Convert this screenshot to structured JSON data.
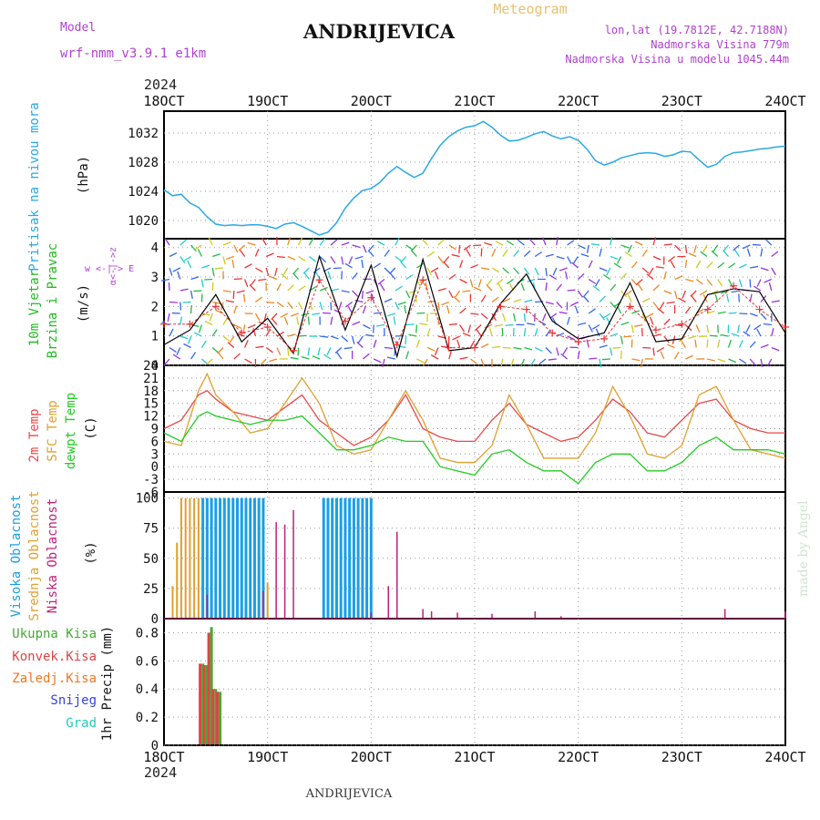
{
  "header": {
    "model_label": "Model",
    "model_name": "wrf-nmm_v3.9.1 e1km",
    "station": "ANDRIJEVICA",
    "meteogram": "Meteogram",
    "lonlat": "lon,lat (19.7812E, 42.7188N)",
    "elevation": "Nadmorska Visina 779m",
    "model_elevation": "Nadmorska Visina u modelu 1045.44m",
    "year": "2024",
    "footer_station": "ANDRIJEVICA",
    "watermark": "made by Angel"
  },
  "x_axis": {
    "ticks": [
      "18OCT",
      "19OCT",
      "20OCT",
      "21OCT",
      "22OCT",
      "23OCT",
      "24OCT"
    ]
  },
  "colors": {
    "pressure": "#2aa8e6",
    "wind_label": "#22bb22",
    "wind_dir_label": "#b040d0",
    "temp2m": "#e84a4a",
    "sfc": "#e0a030",
    "dewpt": "#22cc22",
    "cloud_high": "#1a9ee6",
    "cloud_mid": "#e0a030",
    "cloud_low": "#c0207a",
    "precip_total": "#44aa33",
    "precip_conv": "#e04444",
    "precip_frz": "#ee7722",
    "snow": "#3344dd",
    "grad": "#22ccbb"
  },
  "chart_data": [
    {
      "type": "line",
      "ylabel": "Pritisak na nivou mora",
      "unit": "(hPa)",
      "y_ticks": [
        1020,
        1024,
        1028,
        1032
      ],
      "ylim": [
        1017.5,
        1035
      ],
      "series": [
        {
          "x": [
            0,
            1,
            2,
            3,
            4,
            5,
            6,
            7,
            8,
            9,
            10,
            11,
            12,
            13,
            14,
            15,
            16,
            17,
            18,
            19,
            20,
            21,
            22,
            23,
            24,
            25,
            26,
            27,
            28,
            29,
            30,
            31,
            32,
            33,
            34,
            35,
            36,
            37,
            38,
            39,
            40,
            41,
            42,
            43,
            44,
            45,
            46,
            47,
            48,
            49,
            50,
            51,
            52,
            53,
            54,
            55,
            56,
            57,
            58,
            59,
            60,
            61,
            62,
            63,
            64,
            65,
            66,
            67,
            68,
            69,
            70,
            71,
            72
          ],
          "values": [
            1024.2,
            1023.4,
            1023.6,
            1022.4,
            1021.8,
            1020.5,
            1019.5,
            1019.3,
            1019.4,
            1019.3,
            1019.4,
            1019.4,
            1019.2,
            1018.9,
            1019.5,
            1019.7,
            1019.2,
            1018.6,
            1018.0,
            1018.4,
            1019.7,
            1021.7,
            1023.1,
            1024.1,
            1024.4,
            1025.2,
            1026.5,
            1027.4,
            1026.6,
            1025.9,
            1026.5,
            1028.5,
            1030.3,
            1031.5,
            1032.3,
            1032.8,
            1033.0,
            1033.6,
            1032.8,
            1031.7,
            1030.9,
            1031.0,
            1031.4,
            1031.9,
            1032.2,
            1031.6,
            1031.2,
            1031.5,
            1031.0,
            1029.8,
            1028.2,
            1027.6,
            1028.0,
            1028.6,
            1028.9,
            1029.2,
            1029.3,
            1029.2,
            1028.8,
            1029.0,
            1029.5,
            1029.4,
            1028.3,
            1027.3,
            1027.7,
            1028.8,
            1029.3,
            1029.4,
            1029.6,
            1029.8,
            1029.9,
            1030.1,
            1030.2
          ]
        }
      ]
    },
    {
      "type": "line",
      "ylabel": "10m Vjetar Brzina i Pravac",
      "unit": "(m/s)",
      "direction_legend": "w <-|-> E  α<-|->z",
      "y_ticks": [
        0,
        1,
        2,
        3,
        4
      ],
      "ylim": [
        0,
        4.3
      ],
      "series": [
        {
          "x": [
            0,
            3,
            6,
            9,
            12,
            15,
            18,
            21,
            24,
            27,
            30,
            33,
            36,
            39,
            42,
            45,
            48,
            51,
            54,
            57,
            60,
            63,
            66,
            69,
            72
          ],
          "values": [
            0.7,
            1.2,
            2.4,
            0.8,
            1.6,
            0.4,
            3.7,
            1.2,
            3.4,
            0.3,
            3.6,
            0.5,
            0.6,
            2.1,
            3.1,
            1.5,
            0.9,
            1.1,
            2.8,
            0.8,
            0.9,
            2.4,
            2.6,
            2.5,
            1.1
          ]
        },
        {
          "x": [
            0,
            3,
            6,
            9,
            12,
            15,
            18,
            21,
            24,
            27,
            30,
            33,
            36,
            39,
            42,
            45,
            48,
            51,
            54,
            57,
            60,
            63,
            66,
            69,
            72
          ],
          "values": [
            1.4,
            1.4,
            2.0,
            1.1,
            1.3,
            0.5,
            2.9,
            1.5,
            2.3,
            0.7,
            2.9,
            0.6,
            0.6,
            2.0,
            1.9,
            1.1,
            0.8,
            0.9,
            2.0,
            1.2,
            1.4,
            1.9,
            2.7,
            1.9,
            1.3
          ]
        }
      ]
    },
    {
      "type": "line",
      "ylabel": "2m Temp / SFC Temp / dewpt Temp",
      "unit": "(C)",
      "y_ticks": [
        -6,
        -3,
        0,
        3,
        6,
        9,
        12,
        15,
        18,
        21,
        24
      ],
      "ylim": [
        -6,
        24
      ],
      "series": [
        {
          "name": "2m Temp",
          "x": [
            0,
            2,
            4,
            5,
            6,
            8,
            10,
            12,
            14,
            16,
            18,
            20,
            22,
            24,
            26,
            28,
            30,
            32,
            34,
            36,
            38,
            40,
            42,
            44,
            46,
            48,
            50,
            52,
            54,
            56,
            58,
            60,
            62,
            64,
            66,
            68,
            70,
            72
          ],
          "values": [
            9,
            11,
            17,
            18,
            16,
            13,
            12,
            11,
            14,
            17,
            11,
            8,
            5,
            7,
            11,
            17,
            9,
            7,
            6,
            6,
            11,
            15,
            10,
            8,
            6,
            7,
            11,
            16,
            13,
            8,
            7,
            11,
            15,
            16,
            11,
            9,
            8,
            8
          ]
        },
        {
          "name": "SFC Temp",
          "x": [
            0,
            2,
            4,
            5,
            6,
            8,
            10,
            12,
            14,
            16,
            18,
            20,
            22,
            24,
            26,
            28,
            30,
            32,
            34,
            36,
            38,
            40,
            42,
            44,
            46,
            48,
            50,
            52,
            54,
            56,
            58,
            60,
            62,
            64,
            66,
            68,
            70,
            72
          ],
          "values": [
            6,
            5,
            18,
            22,
            17,
            13,
            8,
            9,
            15,
            21,
            15,
            5,
            3,
            4,
            11,
            18,
            11,
            2,
            1,
            1,
            5,
            17,
            10,
            2,
            2,
            2,
            8,
            19,
            12,
            3,
            2,
            5,
            17,
            19,
            11,
            4,
            3,
            2
          ]
        },
        {
          "name": "dewpt Temp",
          "x": [
            0,
            2,
            4,
            5,
            6,
            8,
            10,
            12,
            14,
            16,
            18,
            20,
            22,
            24,
            26,
            28,
            30,
            32,
            34,
            36,
            38,
            40,
            42,
            44,
            46,
            48,
            50,
            52,
            54,
            56,
            58,
            60,
            62,
            64,
            66,
            68,
            70,
            72
          ],
          "values": [
            8,
            6,
            12,
            13,
            12,
            11,
            10,
            11,
            11,
            12,
            8,
            4,
            4,
            5,
            7,
            6,
            6,
            0,
            -1,
            -2,
            3,
            4,
            1,
            -1,
            -1,
            -4,
            1,
            3,
            3,
            -1,
            -1,
            1,
            5,
            7,
            4,
            4,
            4,
            3
          ]
        }
      ]
    },
    {
      "type": "bar",
      "ylabel": "Visoka Oblacnost / Srednja Oblacnost / Niska Oblacnost",
      "unit": "(%)",
      "y_ticks": [
        0,
        25,
        50,
        75,
        100
      ],
      "ylim": [
        0,
        105
      ],
      "series": [
        {
          "name": "Visoka Oblacnost",
          "x": [
            4.5,
            5,
            5.5,
            6,
            6.5,
            7,
            7.5,
            8,
            8.5,
            9,
            9.5,
            10,
            10.5,
            11,
            11.5,
            18.5,
            19,
            19.5,
            20,
            20.5,
            21,
            21.5,
            22,
            22.5,
            23,
            23.5,
            24
          ],
          "values": [
            100,
            100,
            100,
            100,
            100,
            100,
            100,
            100,
            100,
            100,
            100,
            100,
            100,
            100,
            100,
            100,
            100,
            100,
            100,
            100,
            100,
            100,
            100,
            100,
            100,
            100,
            100
          ]
        },
        {
          "name": "Srednja Oblacnost",
          "x": [
            1,
            1.5,
            2,
            2.5,
            3,
            3.5,
            4,
            4.5,
            5,
            5.5,
            6,
            6.5,
            7,
            7.5,
            8,
            8.5,
            9,
            9.5,
            10,
            10.5,
            11,
            11.5,
            12,
            19,
            20,
            21,
            22,
            23
          ],
          "values": [
            27,
            63,
            100,
            100,
            100,
            100,
            100,
            100,
            100,
            100,
            100,
            100,
            100,
            100,
            100,
            100,
            100,
            100,
            100,
            100,
            100,
            100,
            30,
            100,
            100,
            100,
            90,
            60
          ]
        },
        {
          "name": "Niska Oblacnost",
          "x": [
            5,
            11.5,
            13,
            14,
            15,
            24,
            26,
            27,
            30,
            31,
            34,
            38,
            43,
            46,
            65,
            72
          ],
          "values": [
            20,
            23,
            80,
            78,
            90,
            5,
            27,
            72,
            8,
            6,
            5,
            4,
            6,
            2,
            8,
            6
          ]
        }
      ]
    },
    {
      "type": "bar",
      "ylabel": "1hr Precip (mm)",
      "series_labels": [
        "Ukupna Kisa",
        "Konvek.Kisa",
        "Zaledj.Kisa",
        "Snijeg",
        "Grad"
      ],
      "y_ticks": [
        0,
        0.2,
        0.4,
        0.6,
        0.8
      ],
      "ylim": [
        0,
        0.9
      ],
      "series": [
        {
          "name": "Ukupna Kisa",
          "x": [
            4.5,
            5,
            5.5,
            6,
            6.5
          ],
          "values": [
            0.58,
            0.57,
            0.84,
            0.4,
            0.38
          ]
        },
        {
          "name": "Konvek.Kisa",
          "x": [
            4.5,
            5,
            5.5,
            6,
            6.5
          ],
          "values": [
            0.58,
            0.57,
            0.8,
            0.4,
            0.38
          ]
        }
      ]
    }
  ]
}
